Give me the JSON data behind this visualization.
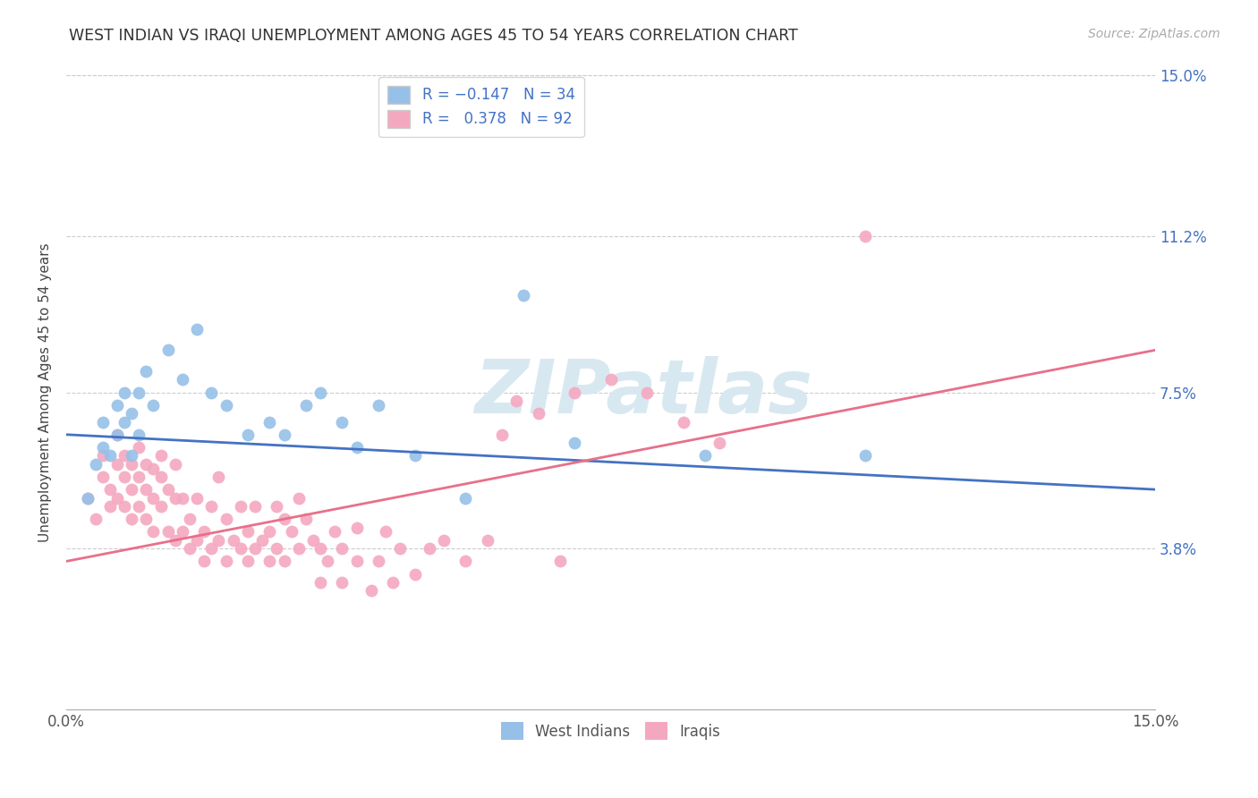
{
  "title": "WEST INDIAN VS IRAQI UNEMPLOYMENT AMONG AGES 45 TO 54 YEARS CORRELATION CHART",
  "source": "Source: ZipAtlas.com",
  "xlabel": "",
  "ylabel": "Unemployment Among Ages 45 to 54 years",
  "xmin": 0.0,
  "xmax": 0.15,
  "ymin": 0.0,
  "ymax": 0.15,
  "yticks": [
    0.038,
    0.075,
    0.112,
    0.15
  ],
  "ytick_labels": [
    "3.8%",
    "7.5%",
    "11.2%",
    "15.0%"
  ],
  "xtick_labels": [
    "0.0%",
    "15.0%"
  ],
  "west_indian_color": "#96C0E8",
  "iraqi_color": "#F4A8C0",
  "west_indian_line_color": "#4472C4",
  "iraqi_line_color": "#E8708A",
  "R_west_indian": -0.147,
  "N_west_indian": 34,
  "R_iraqi": 0.378,
  "N_iraqi": 92,
  "watermark": "ZIPatlas",
  "west_indian_points": [
    [
      0.003,
      0.05
    ],
    [
      0.004,
      0.058
    ],
    [
      0.005,
      0.062
    ],
    [
      0.005,
      0.068
    ],
    [
      0.006,
      0.06
    ],
    [
      0.007,
      0.065
    ],
    [
      0.007,
      0.072
    ],
    [
      0.008,
      0.068
    ],
    [
      0.008,
      0.075
    ],
    [
      0.009,
      0.06
    ],
    [
      0.009,
      0.07
    ],
    [
      0.01,
      0.065
    ],
    [
      0.01,
      0.075
    ],
    [
      0.011,
      0.08
    ],
    [
      0.012,
      0.072
    ],
    [
      0.014,
      0.085
    ],
    [
      0.016,
      0.078
    ],
    [
      0.018,
      0.09
    ],
    [
      0.02,
      0.075
    ],
    [
      0.022,
      0.072
    ],
    [
      0.025,
      0.065
    ],
    [
      0.028,
      0.068
    ],
    [
      0.03,
      0.065
    ],
    [
      0.033,
      0.072
    ],
    [
      0.035,
      0.075
    ],
    [
      0.038,
      0.068
    ],
    [
      0.04,
      0.062
    ],
    [
      0.043,
      0.072
    ],
    [
      0.048,
      0.06
    ],
    [
      0.055,
      0.05
    ],
    [
      0.063,
      0.098
    ],
    [
      0.07,
      0.063
    ],
    [
      0.088,
      0.06
    ],
    [
      0.11,
      0.06
    ]
  ],
  "iraqi_points": [
    [
      0.003,
      0.05
    ],
    [
      0.004,
      0.045
    ],
    [
      0.005,
      0.055
    ],
    [
      0.005,
      0.06
    ],
    [
      0.006,
      0.048
    ],
    [
      0.006,
      0.052
    ],
    [
      0.007,
      0.05
    ],
    [
      0.007,
      0.058
    ],
    [
      0.007,
      0.065
    ],
    [
      0.008,
      0.048
    ],
    [
      0.008,
      0.055
    ],
    [
      0.008,
      0.06
    ],
    [
      0.009,
      0.045
    ],
    [
      0.009,
      0.052
    ],
    [
      0.009,
      0.058
    ],
    [
      0.01,
      0.048
    ],
    [
      0.01,
      0.055
    ],
    [
      0.01,
      0.062
    ],
    [
      0.011,
      0.045
    ],
    [
      0.011,
      0.052
    ],
    [
      0.011,
      0.058
    ],
    [
      0.012,
      0.042
    ],
    [
      0.012,
      0.05
    ],
    [
      0.012,
      0.057
    ],
    [
      0.013,
      0.048
    ],
    [
      0.013,
      0.055
    ],
    [
      0.013,
      0.06
    ],
    [
      0.014,
      0.042
    ],
    [
      0.014,
      0.052
    ],
    [
      0.015,
      0.04
    ],
    [
      0.015,
      0.05
    ],
    [
      0.015,
      0.058
    ],
    [
      0.016,
      0.042
    ],
    [
      0.016,
      0.05
    ],
    [
      0.017,
      0.038
    ],
    [
      0.017,
      0.045
    ],
    [
      0.018,
      0.04
    ],
    [
      0.018,
      0.05
    ],
    [
      0.019,
      0.035
    ],
    [
      0.019,
      0.042
    ],
    [
      0.02,
      0.038
    ],
    [
      0.02,
      0.048
    ],
    [
      0.021,
      0.04
    ],
    [
      0.021,
      0.055
    ],
    [
      0.022,
      0.035
    ],
    [
      0.022,
      0.045
    ],
    [
      0.023,
      0.04
    ],
    [
      0.024,
      0.038
    ],
    [
      0.024,
      0.048
    ],
    [
      0.025,
      0.035
    ],
    [
      0.025,
      0.042
    ],
    [
      0.026,
      0.038
    ],
    [
      0.026,
      0.048
    ],
    [
      0.027,
      0.04
    ],
    [
      0.028,
      0.035
    ],
    [
      0.028,
      0.042
    ],
    [
      0.029,
      0.038
    ],
    [
      0.029,
      0.048
    ],
    [
      0.03,
      0.035
    ],
    [
      0.03,
      0.045
    ],
    [
      0.031,
      0.042
    ],
    [
      0.032,
      0.038
    ],
    [
      0.032,
      0.05
    ],
    [
      0.033,
      0.045
    ],
    [
      0.034,
      0.04
    ],
    [
      0.035,
      0.03
    ],
    [
      0.035,
      0.038
    ],
    [
      0.036,
      0.035
    ],
    [
      0.037,
      0.042
    ],
    [
      0.038,
      0.03
    ],
    [
      0.038,
      0.038
    ],
    [
      0.04,
      0.035
    ],
    [
      0.04,
      0.043
    ],
    [
      0.042,
      0.028
    ],
    [
      0.043,
      0.035
    ],
    [
      0.044,
      0.042
    ],
    [
      0.045,
      0.03
    ],
    [
      0.046,
      0.038
    ],
    [
      0.048,
      0.032
    ],
    [
      0.05,
      0.038
    ],
    [
      0.052,
      0.04
    ],
    [
      0.055,
      0.035
    ],
    [
      0.058,
      0.04
    ],
    [
      0.06,
      0.065
    ],
    [
      0.062,
      0.073
    ],
    [
      0.065,
      0.07
    ],
    [
      0.068,
      0.035
    ],
    [
      0.07,
      0.075
    ],
    [
      0.075,
      0.078
    ],
    [
      0.08,
      0.075
    ],
    [
      0.085,
      0.068
    ],
    [
      0.09,
      0.063
    ],
    [
      0.11,
      0.112
    ]
  ]
}
